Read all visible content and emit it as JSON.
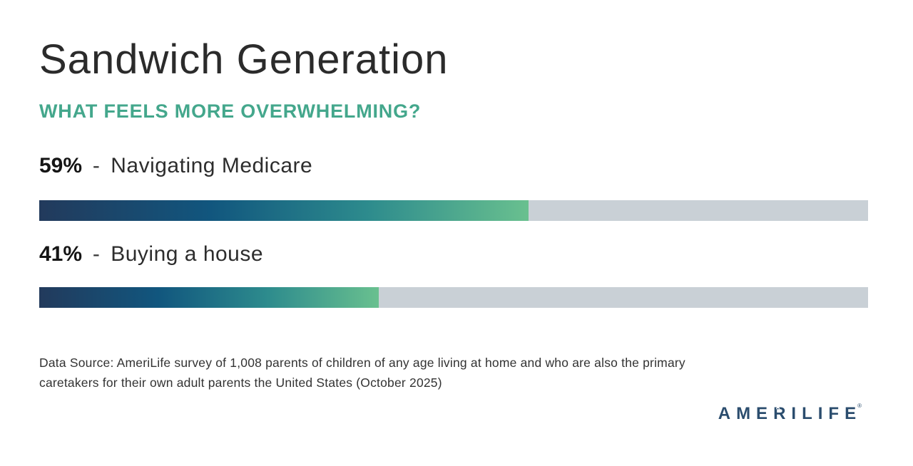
{
  "title": "Sandwich Generation",
  "subtitle": "WHAT FEELS MORE OVERWHELMING?",
  "bars": [
    {
      "percent": "59%",
      "separator": "-",
      "label": "Navigating Medicare",
      "value": 59
    },
    {
      "percent": "41%",
      "separator": "-",
      "label": "Buying a house",
      "value": 41
    }
  ],
  "footnote_lines": [
    "Data Source: AmeriLife survey of 1,008 parents of children of any age living at home and who are also the primary",
    "caretakers for their own adult parents the United States (October 2025)"
  ],
  "logo": {
    "pre": "AME",
    "star_letter": "R",
    "post": "ILIFE",
    "star_glyph": "★",
    "trademark": "®"
  },
  "colors": {
    "title_text": "#2b2b2b",
    "accent_teal": "#44a78c",
    "bar_track": "#c9d0d6",
    "bar_gradient": [
      "#223a5c",
      "#11567e",
      "#2d8b8d",
      "#69c08f"
    ],
    "logo_navy": "#2b4d6e",
    "footnote_text": "#333333"
  },
  "chart_data": {
    "type": "bar",
    "orientation": "horizontal",
    "title": "Sandwich Generation",
    "subtitle": "WHAT FEELS MORE OVERWHELMING?",
    "categories": [
      "Navigating Medicare",
      "Buying a house"
    ],
    "values": [
      59,
      41
    ],
    "unit": "%",
    "xlabel": "",
    "ylabel": "",
    "xlim": [
      0,
      100
    ],
    "grid": false,
    "legend": false,
    "data_labels": [
      "59%",
      "41%"
    ]
  }
}
